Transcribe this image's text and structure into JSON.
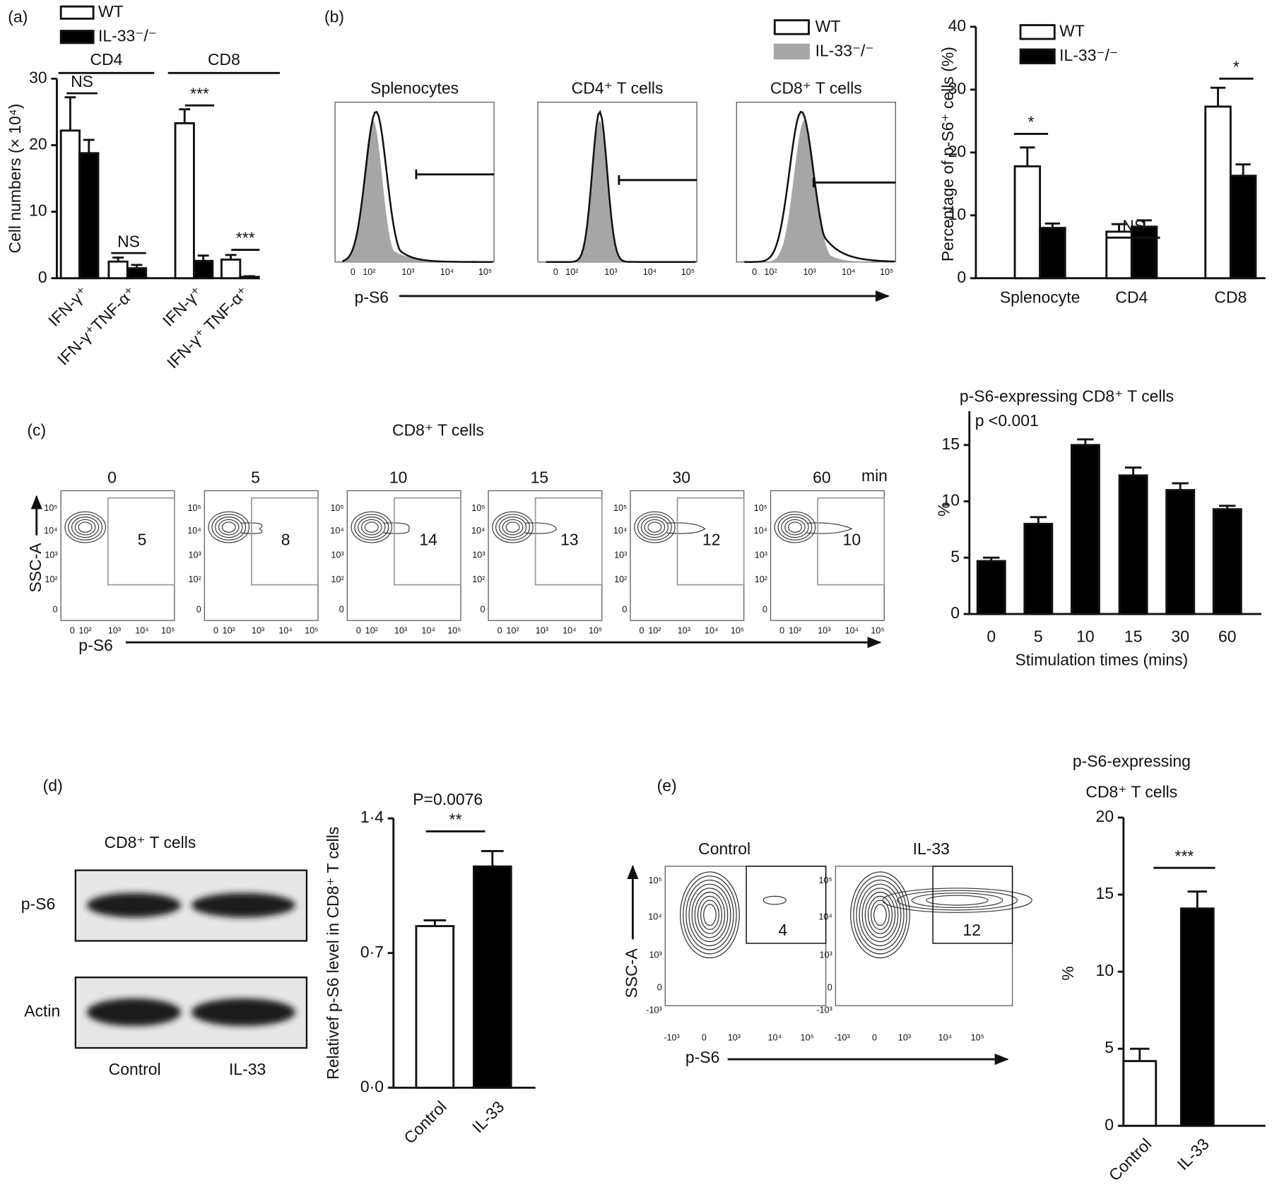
{
  "panel_labels": [
    "(a)",
    "(b)",
    "(c)",
    "(d)",
    "(e)"
  ],
  "chart_data": [
    {
      "type": "bar",
      "ylabel": "Cell numbers (× 10⁴)",
      "categories": [
        "IFN-γ⁺",
        "IFN-γ⁺TNF-α⁺",
        "IFN-γ⁺",
        "IFN-γ⁺ TNF-α⁺"
      ],
      "groups": [
        "CD4",
        "CD8"
      ],
      "series": [
        {
          "name": "WT",
          "color": "#ffffff",
          "values": [
            22.2,
            2.5,
            23.3,
            2.8
          ],
          "errors": [
            5,
            0.6,
            2.1,
            0.7
          ]
        },
        {
          "name": "IL-33⁻/⁻",
          "color": "#000000",
          "values": [
            18.8,
            1.5,
            2.6,
            0.2
          ],
          "errors": [
            2,
            0.5,
            0.8,
            0.1
          ]
        }
      ],
      "ylim": [
        0,
        30
      ],
      "yticks": [
        0,
        10,
        20,
        30
      ],
      "annotations": [
        "NS",
        "NS",
        "***",
        "***"
      ]
    },
    {
      "type": "bar",
      "ylabel": "Percentage of p-S6⁺ cells (%)",
      "categories": [
        "Splenocyte",
        "CD4",
        "CD8"
      ],
      "series": [
        {
          "name": "WT",
          "color": "#ffffff",
          "values": [
            17.8,
            7.4,
            27.3
          ],
          "errors": [
            3,
            1.2,
            3
          ]
        },
        {
          "name": "IL-33⁻/⁻",
          "color": "#000000",
          "values": [
            8,
            8.2,
            16.3
          ],
          "errors": [
            0.7,
            1,
            1.8
          ]
        }
      ],
      "ylim": [
        0,
        40
      ],
      "yticks": [
        0,
        10,
        20,
        30,
        40
      ],
      "annotations": [
        "*",
        "NS",
        "*"
      ]
    },
    {
      "type": "bar",
      "title": "p-S6-expressing CD8⁺ T cells",
      "xlabel": "Stimulation times (mins)",
      "ylabel": "%",
      "categories": [
        "0",
        "5",
        "10",
        "15",
        "30",
        "60"
      ],
      "series": [
        {
          "color": "#000000",
          "values": [
            4.7,
            8,
            15,
            12.3,
            11,
            9.3
          ],
          "errors": [
            0.3,
            0.6,
            0.5,
            0.7,
            0.6,
            0.3
          ]
        }
      ],
      "ylim": [
        0,
        18
      ],
      "yticks": [
        0,
        5,
        10,
        15
      ],
      "annotations": [
        "p <0.001"
      ]
    },
    {
      "type": "bar",
      "ylabel": "Relativef p-S6 level in CD8⁺ T cells",
      "categories": [
        "Control",
        "IL-33"
      ],
      "series": [
        {
          "colors": [
            "#ffffff",
            "#000000"
          ],
          "values": [
            0.84,
            1.15
          ],
          "errors": [
            0.03,
            0.08
          ]
        }
      ],
      "ylim": [
        0,
        1.4
      ],
      "yticks": [
        {
          "value": 0,
          "label": "0·0"
        },
        {
          "value": 0.7,
          "label": "0·7"
        },
        {
          "value": 1.4,
          "label": "1·4"
        }
      ],
      "annotations": [
        "P=0.0076",
        "**"
      ]
    },
    {
      "type": "bar",
      "title": [
        "p-S6-expressing",
        "CD8⁺ T cells"
      ],
      "ylabel": "%",
      "categories": [
        "Control",
        "IL-33"
      ],
      "series": [
        {
          "colors": [
            "#ffffff",
            "#000000"
          ],
          "values": [
            4.2,
            14.1
          ],
          "errors": [
            0.8,
            1.1
          ]
        }
      ],
      "ylim": [
        0,
        20
      ],
      "yticks": [
        0,
        5,
        10,
        15,
        20
      ],
      "annotations": [
        "***"
      ]
    }
  ],
  "flow_b": {
    "legend": [
      {
        "name": "WT",
        "color": "#ffffff"
      },
      {
        "name": "IL-33⁻/⁻",
        "color": "#a6a6a6"
      }
    ],
    "panels": [
      "Splenocytes",
      "CD4⁺ T cells",
      "CD8⁺ T cells"
    ],
    "xticks": [
      "0",
      "10²",
      "10³",
      "10⁴",
      "10⁵"
    ],
    "xlabel": "p-S6"
  },
  "flow_c": {
    "title": "CD8⁺ T cells",
    "times": [
      "0",
      "5",
      "10",
      "15",
      "30",
      "60"
    ],
    "unit": "min",
    "gates": [
      "5",
      "8",
      "14",
      "13",
      "12",
      "10"
    ],
    "yticks": [
      "10⁵",
      "10⁴",
      "10³",
      "10²",
      "0"
    ],
    "xticks": [
      "0",
      "10²",
      "10³",
      "10⁴",
      "10⁵"
    ],
    "ylabel": "SSC-A",
    "xlabel": "p-S6"
  },
  "blot_d": {
    "title": "CD8⁺ T cells",
    "rows": [
      "p-S6",
      "Actin"
    ],
    "lanes": [
      "Control",
      "IL-33"
    ]
  },
  "flow_e": {
    "panels": [
      "Control",
      "IL-33"
    ],
    "gates": [
      "4",
      "12"
    ],
    "yticks": [
      "10⁵",
      "10⁴",
      "10³",
      "0",
      "-10³"
    ],
    "xticks": [
      "-10³",
      "0",
      "10³",
      "10⁴",
      "10⁵"
    ],
    "ylabel": "SSC-A",
    "xlabel": "p-S6"
  }
}
